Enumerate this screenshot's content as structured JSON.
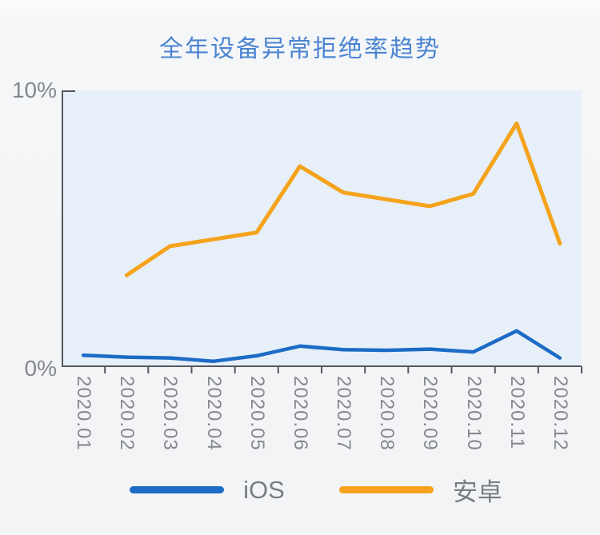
{
  "chart_data": {
    "type": "line",
    "title": "全年设备异常拒绝率趋势",
    "categories": [
      "2020.01",
      "2020.02",
      "2020.03",
      "2020.04",
      "2020.05",
      "2020.06",
      "2020.07",
      "2020.08",
      "2020.09",
      "2020.10",
      "2020.11",
      "2020.12"
    ],
    "series": [
      {
        "name": "iOS",
        "key": "ios",
        "color": "#1c6bc6",
        "values": [
          0.4,
          0.33,
          0.3,
          0.18,
          0.38,
          0.73,
          0.6,
          0.58,
          0.62,
          0.52,
          1.28,
          0.3
        ]
      },
      {
        "name": "安卓",
        "key": "android",
        "color": "#f5a31c",
        "values": [
          null,
          3.3,
          4.35,
          4.6,
          4.85,
          7.25,
          6.3,
          6.05,
          5.8,
          6.25,
          8.8,
          4.45
        ]
      }
    ],
    "xlabel": "",
    "ylabel": "",
    "ylim": [
      0,
      10
    ],
    "y_axis_labels": {
      "top": "10%",
      "bottom": "0%"
    },
    "grid": "off",
    "legend_position": "bottom",
    "plot_background": "#e7eff8",
    "axis_color": "#55585c",
    "label_color": "#85898e",
    "title_color": "#4b85d1"
  }
}
